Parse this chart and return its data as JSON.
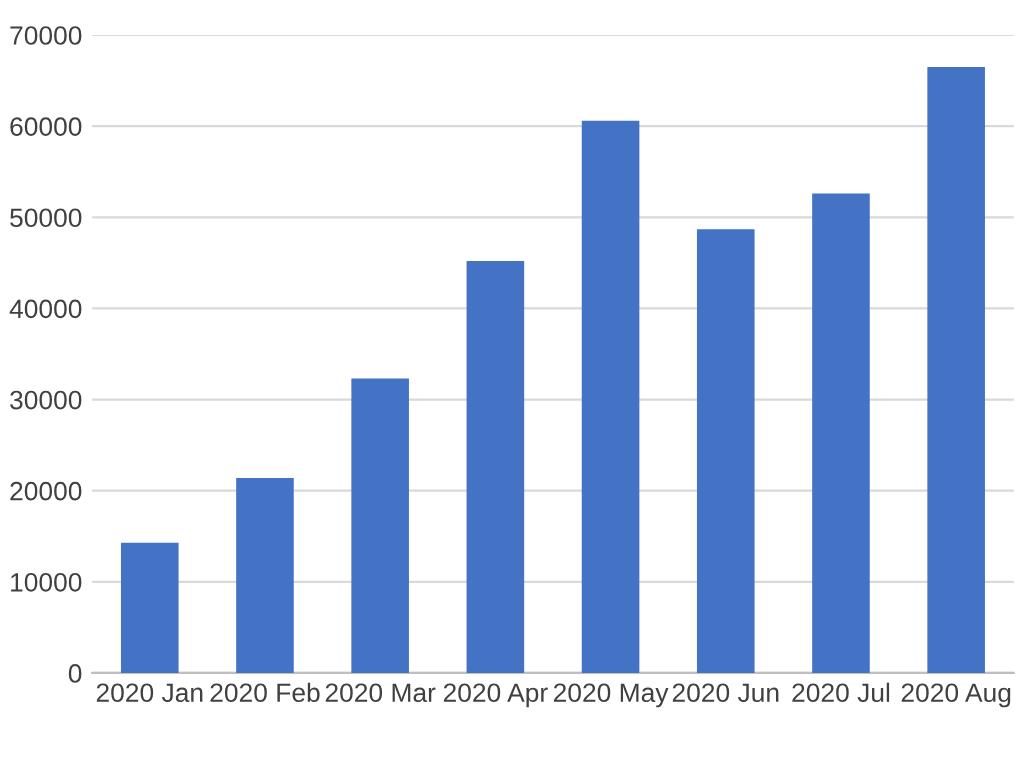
{
  "chart_data": {
    "type": "bar",
    "categories": [
      "2020 Jan",
      "2020 Feb",
      "2020 Mar",
      "2020 Apr",
      "2020 May",
      "2020 Jun",
      "2020 Jul",
      "2020 Aug"
    ],
    "values": [
      14300,
      21400,
      32300,
      45200,
      60600,
      48700,
      52600,
      66500
    ],
    "color": "#4472c4",
    "ylim": [
      0,
      70000
    ],
    "yticks": [
      0,
      10000,
      20000,
      30000,
      40000,
      50000,
      60000,
      70000
    ],
    "grid": "y",
    "legend": false
  }
}
